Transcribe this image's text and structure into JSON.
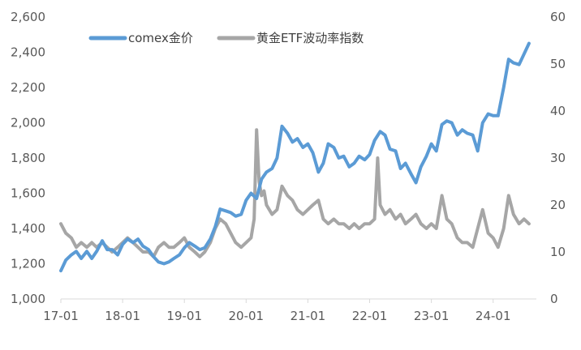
{
  "chart_data": {
    "type": "line",
    "x_ticks": [
      "17-01",
      "18-01",
      "19-01",
      "20-01",
      "21-01",
      "22-01",
      "23-01",
      "24-01"
    ],
    "y_left": {
      "range": [
        1000,
        2600
      ],
      "ticks": [
        "1,000",
        "1,200",
        "1,400",
        "1,600",
        "1,800",
        "2,000",
        "2,200",
        "2,400",
        "2,600"
      ]
    },
    "y_right": {
      "range": [
        0,
        60
      ],
      "ticks": [
        "0",
        "10",
        "20",
        "30",
        "40",
        "50",
        "60"
      ]
    },
    "x_range": [
      2017.0,
      2024.7
    ],
    "grid": false,
    "legend_position": "top",
    "series": [
      {
        "name": "comex金价",
        "axis": "left",
        "color": "#5B9BD5",
        "points": [
          [
            2017.0,
            1160
          ],
          [
            2017.08,
            1220
          ],
          [
            2017.17,
            1250
          ],
          [
            2017.25,
            1270
          ],
          [
            2017.33,
            1230
          ],
          [
            2017.42,
            1270
          ],
          [
            2017.5,
            1230
          ],
          [
            2017.58,
            1270
          ],
          [
            2017.67,
            1330
          ],
          [
            2017.75,
            1280
          ],
          [
            2017.83,
            1280
          ],
          [
            2017.92,
            1250
          ],
          [
            2018.0,
            1310
          ],
          [
            2018.08,
            1340
          ],
          [
            2018.17,
            1320
          ],
          [
            2018.25,
            1340
          ],
          [
            2018.33,
            1300
          ],
          [
            2018.42,
            1280
          ],
          [
            2018.5,
            1240
          ],
          [
            2018.58,
            1210
          ],
          [
            2018.67,
            1200
          ],
          [
            2018.75,
            1210
          ],
          [
            2018.83,
            1230
          ],
          [
            2018.92,
            1250
          ],
          [
            2019.0,
            1290
          ],
          [
            2019.08,
            1320
          ],
          [
            2019.17,
            1300
          ],
          [
            2019.25,
            1280
          ],
          [
            2019.33,
            1290
          ],
          [
            2019.42,
            1340
          ],
          [
            2019.5,
            1410
          ],
          [
            2019.58,
            1510
          ],
          [
            2019.67,
            1500
          ],
          [
            2019.75,
            1490
          ],
          [
            2019.83,
            1470
          ],
          [
            2019.92,
            1480
          ],
          [
            2020.0,
            1560
          ],
          [
            2020.08,
            1600
          ],
          [
            2020.17,
            1570
          ],
          [
            2020.25,
            1680
          ],
          [
            2020.33,
            1720
          ],
          [
            2020.42,
            1740
          ],
          [
            2020.5,
            1800
          ],
          [
            2020.58,
            1980
          ],
          [
            2020.67,
            1940
          ],
          [
            2020.75,
            1890
          ],
          [
            2020.83,
            1910
          ],
          [
            2020.92,
            1860
          ],
          [
            2021.0,
            1880
          ],
          [
            2021.08,
            1830
          ],
          [
            2021.17,
            1720
          ],
          [
            2021.25,
            1770
          ],
          [
            2021.33,
            1880
          ],
          [
            2021.42,
            1860
          ],
          [
            2021.5,
            1800
          ],
          [
            2021.58,
            1810
          ],
          [
            2021.67,
            1750
          ],
          [
            2021.75,
            1770
          ],
          [
            2021.83,
            1810
          ],
          [
            2021.92,
            1790
          ],
          [
            2022.0,
            1820
          ],
          [
            2022.08,
            1900
          ],
          [
            2022.17,
            1950
          ],
          [
            2022.25,
            1930
          ],
          [
            2022.33,
            1850
          ],
          [
            2022.42,
            1840
          ],
          [
            2022.5,
            1740
          ],
          [
            2022.58,
            1770
          ],
          [
            2022.67,
            1710
          ],
          [
            2022.75,
            1660
          ],
          [
            2022.83,
            1750
          ],
          [
            2022.92,
            1810
          ],
          [
            2023.0,
            1880
          ],
          [
            2023.08,
            1840
          ],
          [
            2023.17,
            1990
          ],
          [
            2023.25,
            2010
          ],
          [
            2023.33,
            2000
          ],
          [
            2023.42,
            1930
          ],
          [
            2023.5,
            1960
          ],
          [
            2023.58,
            1940
          ],
          [
            2023.67,
            1930
          ],
          [
            2023.75,
            1840
          ],
          [
            2023.83,
            2000
          ],
          [
            2023.92,
            2050
          ],
          [
            2024.0,
            2040
          ],
          [
            2024.08,
            2040
          ],
          [
            2024.17,
            2200
          ],
          [
            2024.25,
            2360
          ],
          [
            2024.33,
            2340
          ],
          [
            2024.42,
            2330
          ],
          [
            2024.5,
            2390
          ],
          [
            2024.58,
            2450
          ]
        ]
      },
      {
        "name": "黄金ETF波动率指数",
        "axis": "right",
        "color": "#A6A6A6",
        "points": [
          [
            2017.0,
            16
          ],
          [
            2017.08,
            14
          ],
          [
            2017.17,
            13
          ],
          [
            2017.25,
            11
          ],
          [
            2017.33,
            12
          ],
          [
            2017.42,
            11
          ],
          [
            2017.5,
            12
          ],
          [
            2017.58,
            11
          ],
          [
            2017.67,
            12
          ],
          [
            2017.75,
            11
          ],
          [
            2017.83,
            10
          ],
          [
            2017.92,
            11
          ],
          [
            2018.0,
            12
          ],
          [
            2018.08,
            13
          ],
          [
            2018.17,
            12
          ],
          [
            2018.25,
            11
          ],
          [
            2018.33,
            10
          ],
          [
            2018.42,
            10
          ],
          [
            2018.5,
            9
          ],
          [
            2018.58,
            11
          ],
          [
            2018.67,
            12
          ],
          [
            2018.75,
            11
          ],
          [
            2018.83,
            11
          ],
          [
            2018.92,
            12
          ],
          [
            2019.0,
            13
          ],
          [
            2019.08,
            11
          ],
          [
            2019.17,
            10
          ],
          [
            2019.25,
            9
          ],
          [
            2019.33,
            10
          ],
          [
            2019.42,
            12
          ],
          [
            2019.5,
            15
          ],
          [
            2019.58,
            17
          ],
          [
            2019.67,
            16
          ],
          [
            2019.75,
            14
          ],
          [
            2019.83,
            12
          ],
          [
            2019.92,
            11
          ],
          [
            2020.0,
            12
          ],
          [
            2020.08,
            13
          ],
          [
            2020.13,
            17
          ],
          [
            2020.17,
            36
          ],
          [
            2020.21,
            25
          ],
          [
            2020.25,
            22
          ],
          [
            2020.29,
            23
          ],
          [
            2020.33,
            20
          ],
          [
            2020.42,
            18
          ],
          [
            2020.5,
            19
          ],
          [
            2020.58,
            24
          ],
          [
            2020.67,
            22
          ],
          [
            2020.75,
            21
          ],
          [
            2020.83,
            19
          ],
          [
            2020.92,
            18
          ],
          [
            2021.0,
            19
          ],
          [
            2021.08,
            20
          ],
          [
            2021.17,
            21
          ],
          [
            2021.25,
            17
          ],
          [
            2021.33,
            16
          ],
          [
            2021.42,
            17
          ],
          [
            2021.5,
            16
          ],
          [
            2021.58,
            16
          ],
          [
            2021.67,
            15
          ],
          [
            2021.75,
            16
          ],
          [
            2021.83,
            15
          ],
          [
            2021.92,
            16
          ],
          [
            2022.0,
            16
          ],
          [
            2022.08,
            17
          ],
          [
            2022.13,
            30
          ],
          [
            2022.17,
            20
          ],
          [
            2022.25,
            18
          ],
          [
            2022.33,
            19
          ],
          [
            2022.42,
            17
          ],
          [
            2022.5,
            18
          ],
          [
            2022.58,
            16
          ],
          [
            2022.67,
            17
          ],
          [
            2022.75,
            18
          ],
          [
            2022.83,
            16
          ],
          [
            2022.92,
            15
          ],
          [
            2023.0,
            16
          ],
          [
            2023.08,
            15
          ],
          [
            2023.17,
            22
          ],
          [
            2023.25,
            17
          ],
          [
            2023.33,
            16
          ],
          [
            2023.42,
            13
          ],
          [
            2023.5,
            12
          ],
          [
            2023.58,
            12
          ],
          [
            2023.67,
            11
          ],
          [
            2023.75,
            15
          ],
          [
            2023.83,
            19
          ],
          [
            2023.92,
            14
          ],
          [
            2024.0,
            13
          ],
          [
            2024.08,
            11
          ],
          [
            2024.17,
            15
          ],
          [
            2024.25,
            22
          ],
          [
            2024.33,
            18
          ],
          [
            2024.42,
            16
          ],
          [
            2024.5,
            17
          ],
          [
            2024.58,
            16
          ]
        ]
      }
    ]
  }
}
